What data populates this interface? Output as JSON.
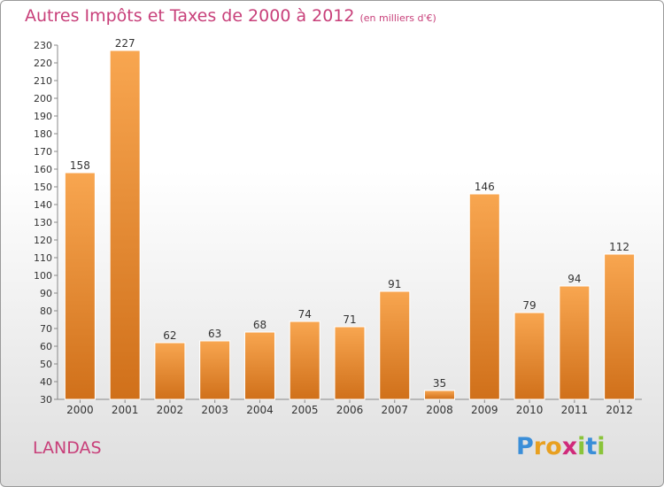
{
  "header": {
    "title": "Autres Impôts et Taxes de 2000 à 2012",
    "subtitle": "(en milliers d'€)"
  },
  "footer": {
    "place": "LANDAS",
    "logo_letters": [
      "P",
      "r",
      "o",
      "x",
      "i",
      "t",
      "i"
    ]
  },
  "colors": {
    "title": "#c8407a",
    "bar_top": "#f8a650",
    "bar_bottom": "#d0701a",
    "logo": [
      "#3a8ed8",
      "#e8a020",
      "#e8a020",
      "#d02a7a",
      "#8ac43a",
      "#3a8ed8",
      "#8ac43a"
    ]
  },
  "chart_data": {
    "type": "bar",
    "categories": [
      "2000",
      "2001",
      "2002",
      "2003",
      "2004",
      "2005",
      "2006",
      "2007",
      "2008",
      "2009",
      "2010",
      "2011",
      "2012"
    ],
    "values": [
      158,
      227,
      62,
      63,
      68,
      74,
      71,
      91,
      35,
      146,
      79,
      94,
      112
    ],
    "ylim": [
      30,
      230
    ],
    "ytick_step": 10,
    "grid": false,
    "legend": "none"
  }
}
